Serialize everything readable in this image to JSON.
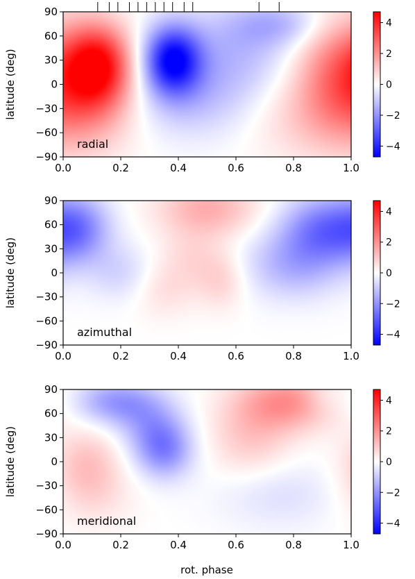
{
  "figure": {
    "xlabel": "rot. phase",
    "colormap": [
      "#0000ff",
      "#ffffff",
      "#ff0000"
    ]
  },
  "chart_data": [
    {
      "type": "heatmap",
      "label": "radial",
      "ylabel": "latitude (deg)",
      "xlim": [
        0.0,
        1.0
      ],
      "ylim": [
        -90,
        90
      ],
      "xticks": [
        "0.0",
        "0.2",
        "0.4",
        "0.6",
        "0.8",
        "1.0"
      ],
      "yticks": [
        "−90",
        "−60",
        "−30",
        "0",
        "30",
        "60",
        "90"
      ],
      "colorbar": {
        "ticks": [
          "4",
          "2",
          "0",
          "−2",
          "−4"
        ],
        "range": [
          -4.7,
          4.7
        ]
      },
      "observation_phases": [
        0.12,
        0.16,
        0.19,
        0.23,
        0.26,
        0.29,
        0.32,
        0.35,
        0.38,
        0.42,
        0.45,
        0.68,
        0.75
      ],
      "features": [
        {
          "x": 0.12,
          "y": 25,
          "value": 4.0,
          "sx": 0.08,
          "sy": 35
        },
        {
          "x": 0.08,
          "y": -20,
          "value": 1.8,
          "sx": 0.12,
          "sy": 45
        },
        {
          "x": 0.95,
          "y": 20,
          "value": 2.0,
          "sx": 0.1,
          "sy": 50
        },
        {
          "x": 0.85,
          "y": -40,
          "value": 0.8,
          "sx": 0.15,
          "sy": 40
        },
        {
          "x": 0.38,
          "y": 30,
          "value": -4.5,
          "sx": 0.07,
          "sy": 30
        },
        {
          "x": 0.6,
          "y": 40,
          "value": -1.2,
          "sx": 0.14,
          "sy": 40
        },
        {
          "x": 0.45,
          "y": -20,
          "value": -1.0,
          "sx": 0.15,
          "sy": 35
        },
        {
          "x": 0.75,
          "y": 75,
          "value": -1.2,
          "sx": 0.12,
          "sy": 20
        }
      ]
    },
    {
      "type": "heatmap",
      "label": "azimuthal",
      "ylabel": "latitude (deg)",
      "xlim": [
        0.0,
        1.0
      ],
      "ylim": [
        -90,
        90
      ],
      "xticks": [
        "0.0",
        "0.2",
        "0.4",
        "0.6",
        "0.8",
        "1.0"
      ],
      "yticks": [
        "−90",
        "−60",
        "−30",
        "0",
        "30",
        "60",
        "90"
      ],
      "colorbar": {
        "ticks": [
          "4",
          "2",
          "0",
          "−2",
          "−4"
        ],
        "range": [
          -4.7,
          4.7
        ]
      },
      "features": [
        {
          "x": 0.5,
          "y": 80,
          "value": 1.5,
          "sx": 0.12,
          "sy": 25
        },
        {
          "x": 0.45,
          "y": 20,
          "value": 0.6,
          "sx": 0.08,
          "sy": 25
        },
        {
          "x": 0.35,
          "y": -20,
          "value": 0.6,
          "sx": 0.08,
          "sy": 25
        },
        {
          "x": 0.55,
          "y": -10,
          "value": 0.8,
          "sx": 0.06,
          "sy": 25
        },
        {
          "x": 0.05,
          "y": 55,
          "value": -2.2,
          "sx": 0.08,
          "sy": 30
        },
        {
          "x": 0.9,
          "y": 55,
          "value": -2.3,
          "sx": 0.1,
          "sy": 30
        },
        {
          "x": 0.8,
          "y": 10,
          "value": -1.4,
          "sx": 0.12,
          "sy": 30
        },
        {
          "x": 0.2,
          "y": 0,
          "value": -0.8,
          "sx": 0.08,
          "sy": 25
        }
      ]
    },
    {
      "type": "heatmap",
      "label": "meridional",
      "ylabel": "latitude (deg)",
      "xlim": [
        0.0,
        1.0
      ],
      "ylim": [
        -90,
        90
      ],
      "xticks": [
        "0.0",
        "0.2",
        "0.4",
        "0.6",
        "0.8",
        "1.0"
      ],
      "yticks": [
        "−90",
        "−60",
        "−30",
        "0",
        "30",
        "60",
        "90"
      ],
      "colorbar": {
        "ticks": [
          "4",
          "2",
          "0",
          "−2",
          "−4"
        ],
        "range": [
          -4.7,
          4.7
        ]
      },
      "features": [
        {
          "x": 0.78,
          "y": 75,
          "value": 2.0,
          "sx": 0.12,
          "sy": 25
        },
        {
          "x": 0.65,
          "y": 30,
          "value": 1.0,
          "sx": 0.1,
          "sy": 35
        },
        {
          "x": 0.08,
          "y": 0,
          "value": 1.0,
          "sx": 0.08,
          "sy": 30
        },
        {
          "x": 0.1,
          "y": -40,
          "value": 0.6,
          "sx": 0.1,
          "sy": 30
        },
        {
          "x": 0.18,
          "y": 75,
          "value": -1.8,
          "sx": 0.1,
          "sy": 20
        },
        {
          "x": 0.35,
          "y": 15,
          "value": -2.2,
          "sx": 0.07,
          "sy": 25
        },
        {
          "x": 0.3,
          "y": 50,
          "value": -1.2,
          "sx": 0.08,
          "sy": 25
        },
        {
          "x": 0.75,
          "y": -40,
          "value": -0.6,
          "sx": 0.15,
          "sy": 30
        },
        {
          "x": 0.9,
          "y": 80,
          "value": -0.5,
          "sx": 0.05,
          "sy": 15
        }
      ]
    }
  ]
}
